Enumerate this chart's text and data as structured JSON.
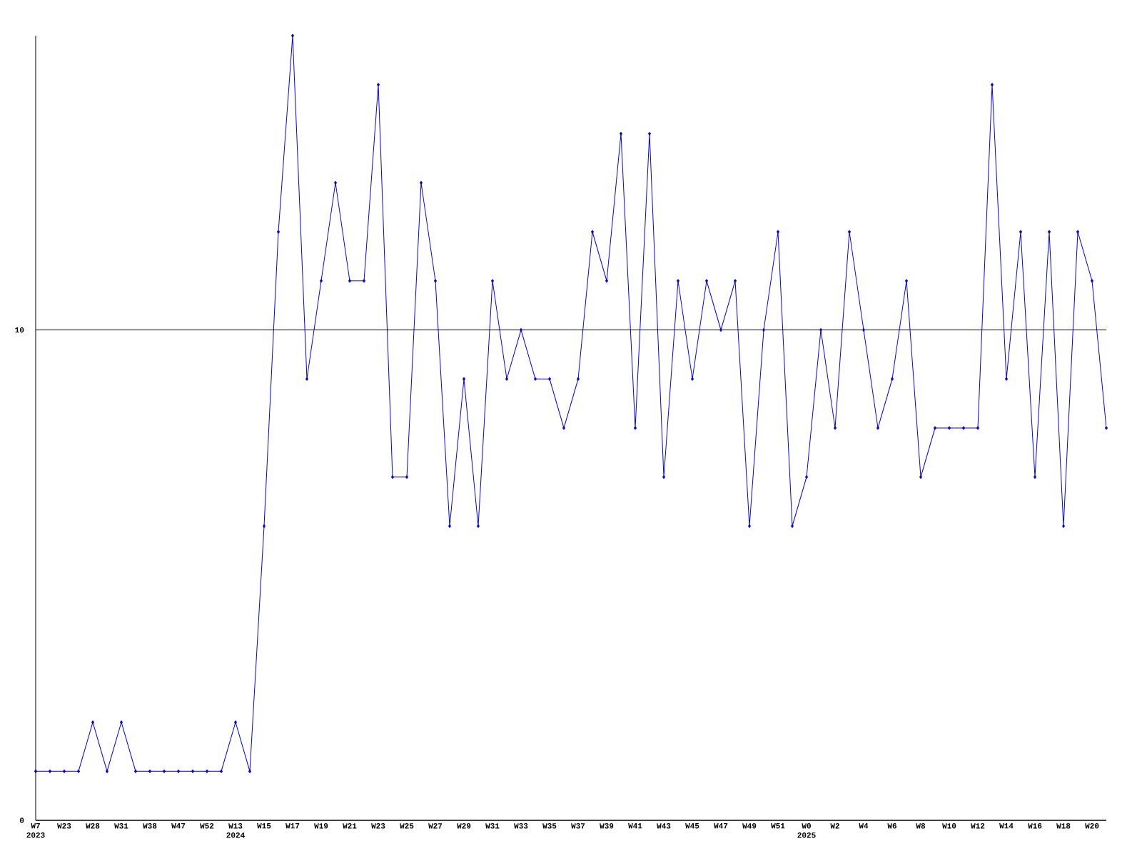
{
  "chart_data": {
    "type": "line",
    "categories": [
      "W7 2023",
      null,
      "W23",
      null,
      "W28",
      null,
      "W31",
      null,
      "W38",
      null,
      "W47",
      null,
      "W52",
      null,
      "W13 2024",
      null,
      "W15",
      null,
      "W17",
      null,
      "W19",
      null,
      "W21",
      null,
      "W23",
      null,
      "W25",
      null,
      "W27",
      null,
      "W29",
      null,
      "W31",
      null,
      "W33",
      null,
      "W35",
      null,
      "W37",
      null,
      "W39",
      null,
      "W41",
      null,
      "W43",
      null,
      "W45",
      null,
      "W47",
      null,
      "W49",
      null,
      "W51",
      null,
      "W0 2025",
      null,
      "W2",
      null,
      "W4",
      null,
      "W6",
      null,
      "W8",
      null,
      "W10",
      null,
      "W12",
      null,
      "W14",
      null,
      "W16",
      null,
      "W18",
      null,
      "W20",
      null
    ],
    "series": [
      {
        "color": "#0000ff",
        "values": [
          1,
          1,
          1,
          1,
          2,
          1,
          2,
          1,
          1,
          1,
          1,
          1,
          1,
          1,
          2,
          1,
          6,
          12,
          16,
          9,
          11,
          13,
          11,
          11,
          15,
          7,
          7,
          13,
          11,
          6,
          9,
          6,
          11,
          9,
          10,
          9,
          9,
          8,
          9,
          12,
          11,
          14,
          8,
          14,
          7,
          11,
          9,
          11,
          10,
          11,
          6,
          10,
          12,
          6,
          7,
          10,
          8,
          12,
          10,
          8,
          9,
          11,
          7,
          8,
          8,
          8,
          8,
          15,
          9,
          12,
          7,
          12,
          6,
          12,
          11,
          8
        ]
      }
    ],
    "ylim": [
      0,
      16
    ],
    "yticks": [
      0,
      10
    ],
    "grid": "y",
    "marker": "diamond",
    "line_style": "solid"
  }
}
